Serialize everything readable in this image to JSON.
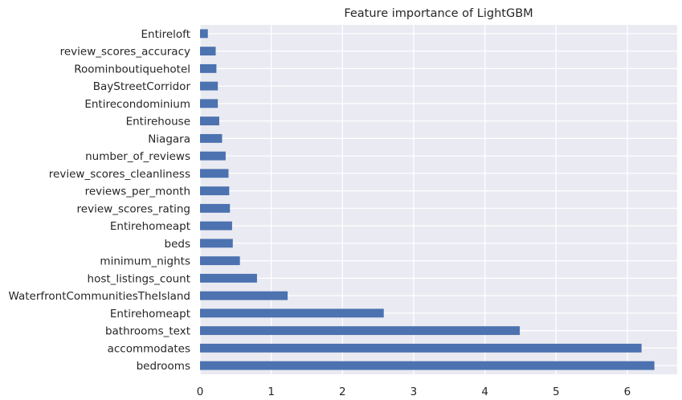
{
  "chart_data": {
    "type": "bar",
    "orientation": "horizontal",
    "title": "Feature importance of LightGBM",
    "xlabel": "",
    "ylabel": "",
    "xlim": [
      0,
      6.7
    ],
    "xticks": [
      0,
      1,
      2,
      3,
      4,
      5,
      6
    ],
    "grid": true,
    "bar_color": "#4c72b0",
    "background_color": "#eaeaf2",
    "categories": [
      "Entireloft",
      "review_scores_accuracy",
      "Roominboutiquehotel",
      "BayStreetCorridor",
      "Entirecondominium",
      "Entirehouse",
      "Niagara",
      "number_of_reviews",
      "review_scores_cleanliness",
      "reviews_per_month",
      "review_scores_rating",
      "Entirehomeapt",
      "beds",
      "minimum_nights",
      "host_listings_count",
      "WaterfrontCommunitiesTheIsland",
      "Entirehomeapt",
      "bathrooms_text",
      "accommodates",
      "bedrooms"
    ],
    "values": [
      0.11,
      0.22,
      0.23,
      0.25,
      0.25,
      0.27,
      0.31,
      0.36,
      0.4,
      0.41,
      0.42,
      0.45,
      0.46,
      0.56,
      0.8,
      1.23,
      2.58,
      4.49,
      6.2,
      6.38
    ]
  }
}
